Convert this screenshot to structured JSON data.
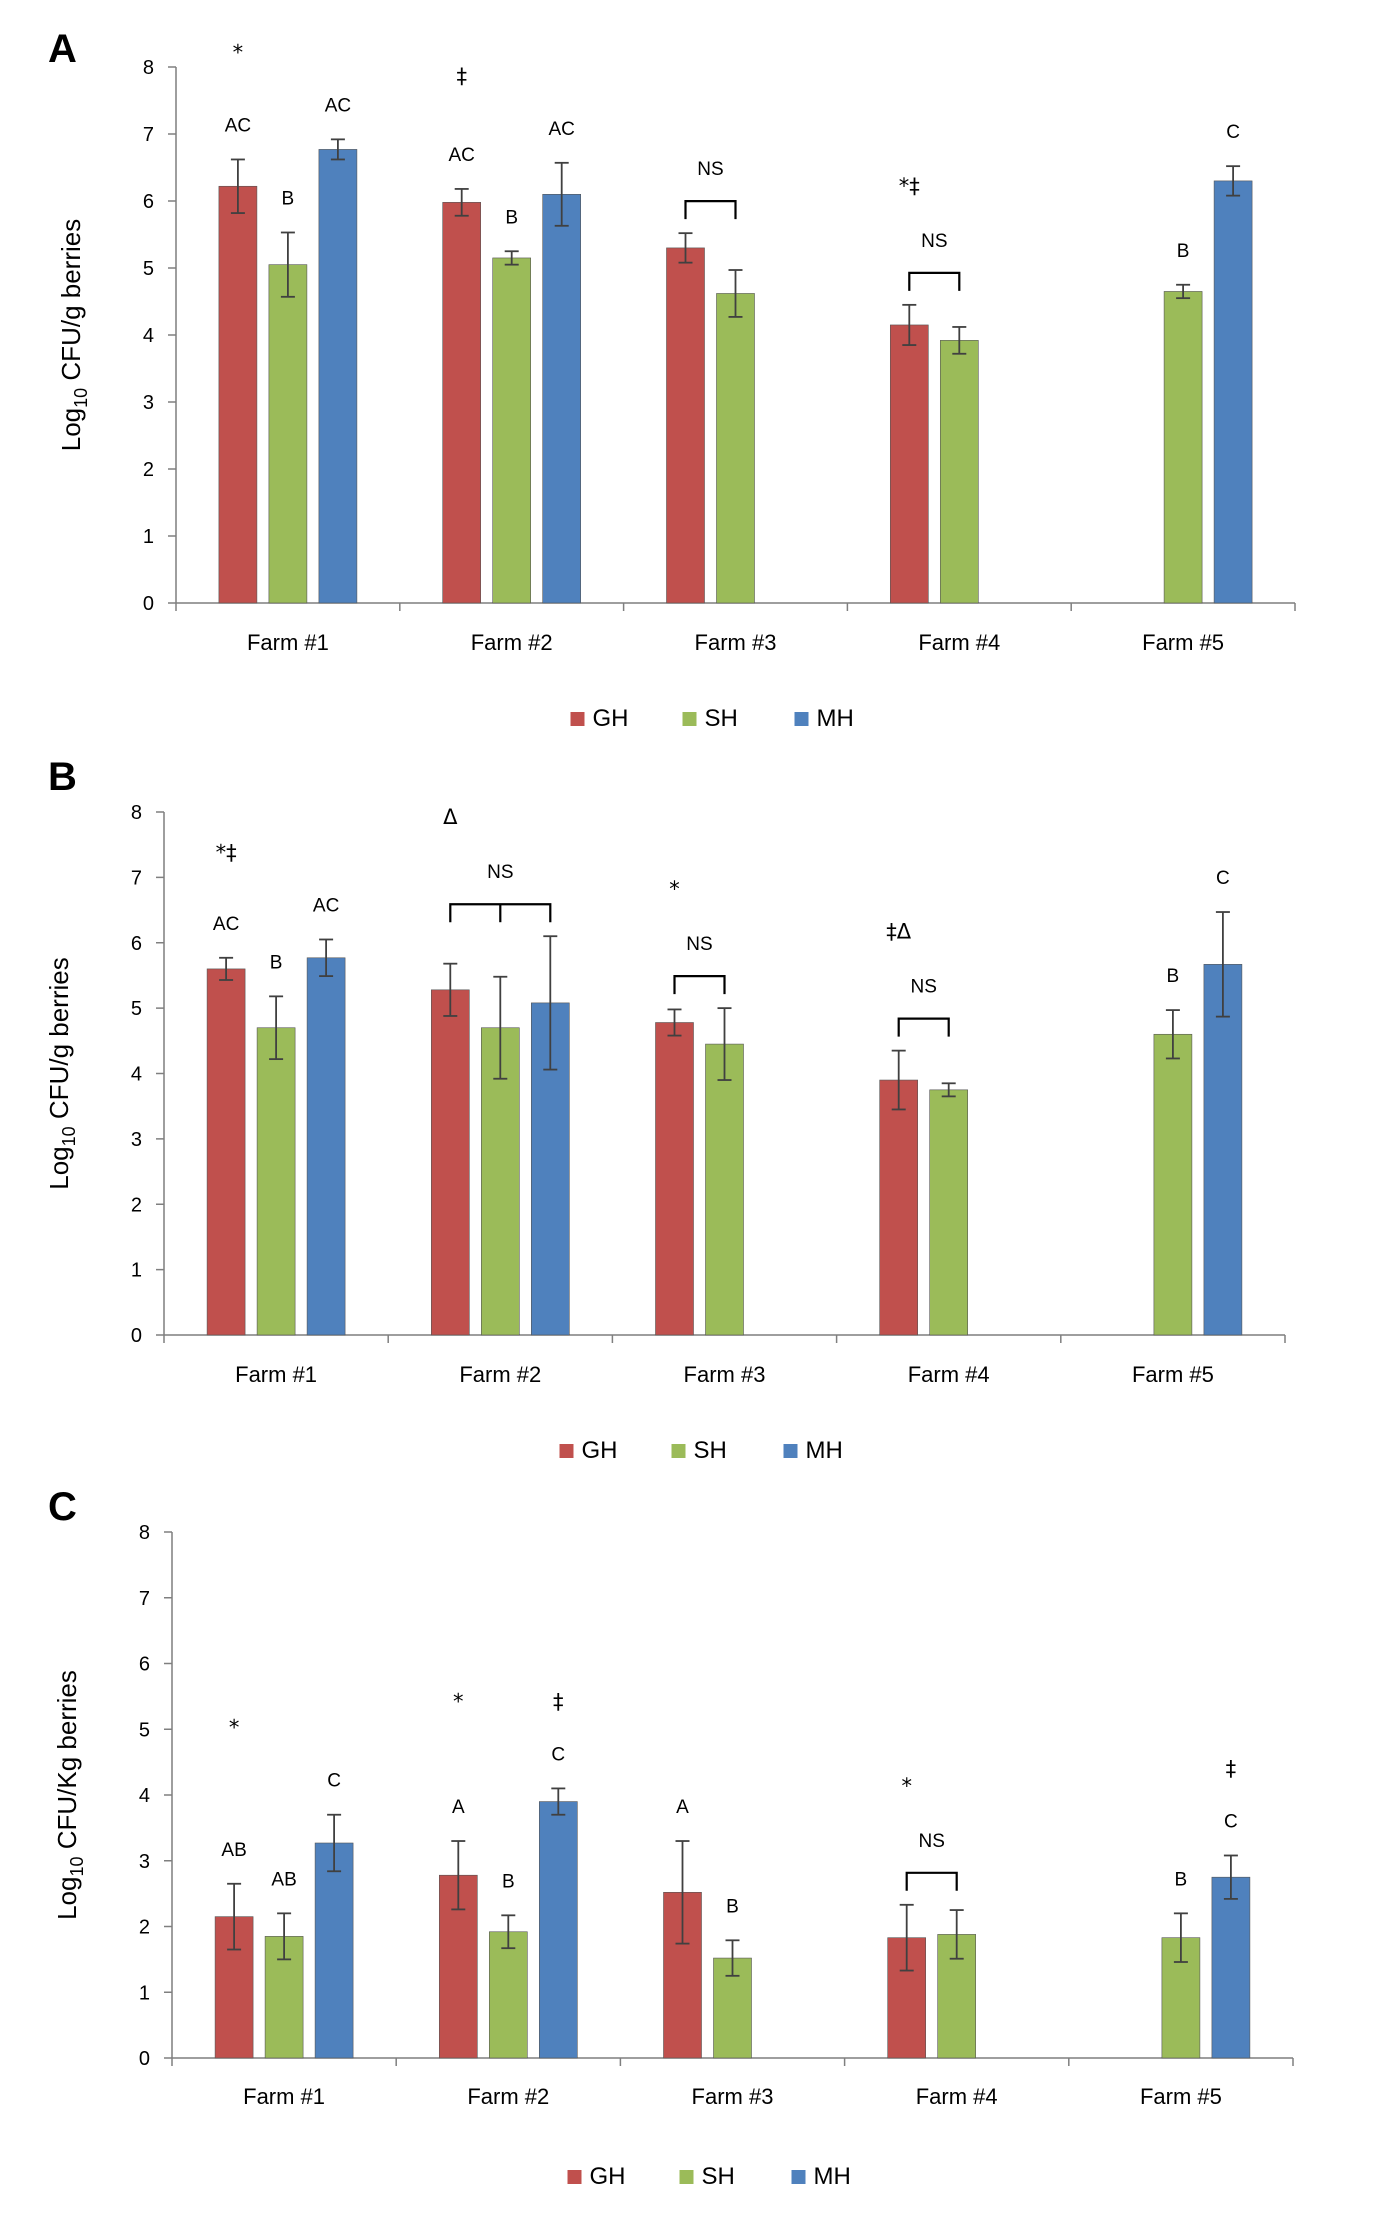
{
  "figure": {
    "legend": [
      {
        "name": "GH",
        "color": "#c0504d"
      },
      {
        "name": "SH",
        "color": "#9bbb59"
      },
      {
        "name": "MH",
        "color": "#4f81bd"
      }
    ]
  },
  "chart_data": [
    {
      "panel": "A",
      "type": "bar",
      "ylabel": "Log10 CFU/g berries",
      "ylim": [
        0,
        8
      ],
      "yticks": [
        "0",
        "1",
        "2",
        "3",
        "4",
        "5",
        "6",
        "7",
        "8"
      ],
      "categories": [
        "Farm #1",
        "Farm #2",
        "Farm #3",
        "Farm #4",
        "Farm #5"
      ],
      "series": [
        {
          "name": "GH",
          "values": [
            6.22,
            5.98,
            5.3,
            4.15,
            null
          ],
          "errors": [
            0.4,
            0.2,
            0.22,
            0.3,
            null
          ],
          "labels": [
            "AC",
            "AC",
            "",
            "",
            ""
          ]
        },
        {
          "name": "SH",
          "values": [
            5.05,
            5.15,
            4.62,
            3.92,
            4.65
          ],
          "errors": [
            0.48,
            0.1,
            0.35,
            0.2,
            0.1
          ],
          "labels": [
            "B",
            "B",
            "",
            "",
            "B"
          ]
        },
        {
          "name": "MH",
          "values": [
            6.77,
            6.1,
            null,
            null,
            6.3
          ],
          "errors": [
            0.15,
            0.47,
            null,
            null,
            0.22
          ],
          "labels": [
            "AC",
            "AC",
            "",
            "",
            "C"
          ]
        }
      ],
      "symbols": [
        "*",
        "‡",
        "",
        "*‡",
        ""
      ],
      "brackets": [
        {
          "farm": 2,
          "span": [
            0,
            1
          ],
          "label": "NS"
        },
        {
          "farm": 3,
          "span": [
            0,
            1
          ],
          "label": "NS"
        }
      ]
    },
    {
      "panel": "B",
      "type": "bar",
      "ylabel": "Log10 CFU/g berries",
      "ylim": [
        0,
        8
      ],
      "yticks": [
        "0",
        "1",
        "2",
        "3",
        "4",
        "5",
        "6",
        "7",
        "8"
      ],
      "categories": [
        "Farm #1",
        "Farm #2",
        "Farm #3",
        "Farm #4",
        "Farm #5"
      ],
      "series": [
        {
          "name": "GH",
          "values": [
            5.6,
            5.28,
            4.78,
            3.9,
            null
          ],
          "errors": [
            0.17,
            0.4,
            0.2,
            0.45,
            null
          ],
          "labels": [
            "AC",
            "",
            "",
            "",
            ""
          ]
        },
        {
          "name": "SH",
          "values": [
            4.7,
            4.7,
            4.45,
            3.75,
            4.6
          ],
          "errors": [
            0.48,
            0.78,
            0.55,
            0.1,
            0.37
          ],
          "labels": [
            "B",
            "",
            "",
            "",
            "B"
          ]
        },
        {
          "name": "MH",
          "values": [
            5.77,
            5.08,
            null,
            null,
            5.67
          ],
          "errors": [
            0.28,
            1.02,
            null,
            null,
            0.8
          ],
          "labels": [
            "AC",
            "",
            "",
            "",
            "C"
          ]
        }
      ],
      "symbols": [
        "*‡",
        "Δ",
        "*",
        "‡Δ",
        ""
      ],
      "brackets": [
        {
          "farm": 1,
          "span": [
            0,
            2
          ],
          "label": "NS"
        },
        {
          "farm": 2,
          "span": [
            0,
            1
          ],
          "label": "NS"
        },
        {
          "farm": 3,
          "span": [
            0,
            1
          ],
          "label": "NS"
        }
      ]
    },
    {
      "panel": "C",
      "type": "bar",
      "ylabel": "Log10 CFU/Kg berries",
      "ylim": [
        0,
        8
      ],
      "yticks": [
        "0",
        "1",
        "2",
        "3",
        "4",
        "5",
        "6",
        "7",
        "8"
      ],
      "categories": [
        "Farm #1",
        "Farm #2",
        "Farm #3",
        "Farm #4",
        "Farm #5"
      ],
      "series": [
        {
          "name": "GH",
          "values": [
            2.15,
            2.78,
            2.52,
            1.83,
            null
          ],
          "errors": [
            0.5,
            0.52,
            0.78,
            0.5,
            null
          ],
          "labels": [
            "AB",
            "A",
            "A",
            "",
            ""
          ]
        },
        {
          "name": "SH",
          "values": [
            1.85,
            1.92,
            1.52,
            1.88,
            1.83
          ],
          "errors": [
            0.35,
            0.25,
            0.27,
            0.37,
            0.37
          ],
          "labels": [
            "AB",
            "B",
            "B",
            "",
            "B"
          ]
        },
        {
          "name": "MH",
          "values": [
            3.27,
            3.9,
            null,
            null,
            2.75
          ],
          "errors": [
            0.43,
            0.2,
            null,
            null,
            0.33
          ],
          "labels": [
            "C",
            "C",
            "",
            "",
            "C"
          ]
        }
      ],
      "symbols": [
        "*",
        "*",
        "",
        "*",
        ""
      ],
      "mh_symbols": [
        "",
        "‡",
        "",
        "",
        "‡"
      ],
      "brackets": [
        {
          "farm": 3,
          "span": [
            0,
            1
          ],
          "label": "NS"
        }
      ]
    }
  ]
}
